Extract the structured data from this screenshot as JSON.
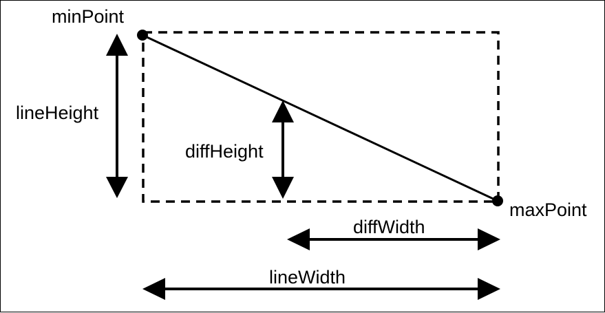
{
  "labels": {
    "min_point": "minPoint",
    "max_point": "maxPoint",
    "line_height": "lineHeight",
    "diff_height": "diffHeight",
    "diff_width": "diffWidth",
    "line_width": "lineWidth"
  },
  "colors": {
    "stroke": "#000000",
    "background": "#ffffff"
  }
}
